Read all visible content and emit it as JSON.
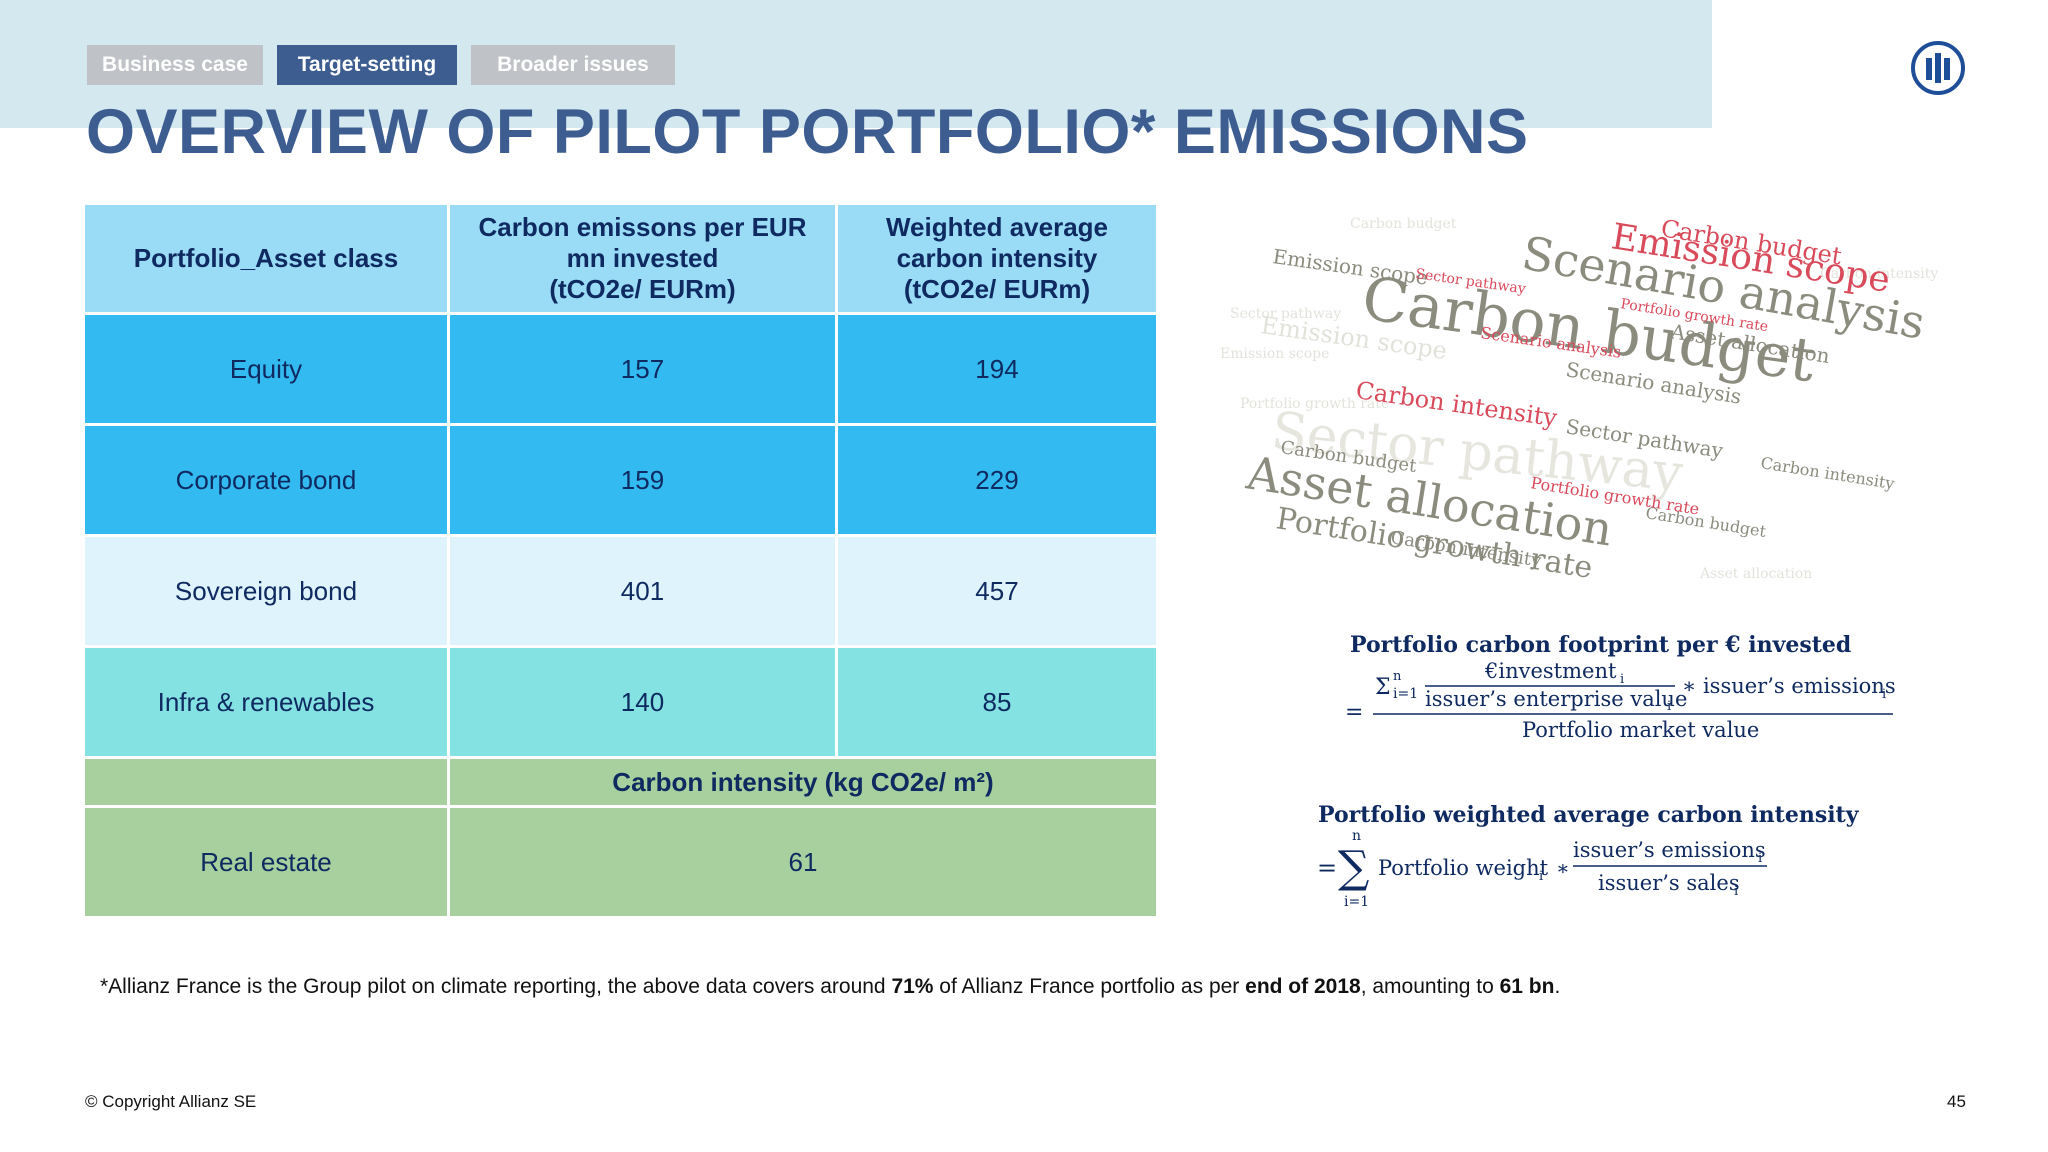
{
  "tabs": [
    {
      "label": "Business case",
      "active": false
    },
    {
      "label": "Target-setting",
      "active": true
    },
    {
      "label": "Broader issues",
      "active": false
    }
  ],
  "logo_icon": "allianz-eagle-logo",
  "title": "OVERVIEW OF PILOT PORTFOLIO* EMISSIONS",
  "table": {
    "headers": [
      "Portfolio_Asset class",
      "Carbon emissons per EUR mn invested (tCO2e/ EURm)",
      "Weighted average carbon intensity (tCO2e/ EURm)"
    ],
    "header_lines": {
      "col2": [
        "Carbon emissons per EUR",
        "mn invested",
        "(tCO2e/ EURm)"
      ],
      "col3": [
        "Weighted average",
        "carbon intensity",
        "(tCO2e/ EURm)"
      ]
    },
    "rows": [
      {
        "asset_class": "Equity",
        "emissions": "157",
        "intensity": "194"
      },
      {
        "asset_class": "Corporate bond",
        "emissions": "159",
        "intensity": "229"
      },
      {
        "asset_class": "Sovereign bond",
        "emissions": "401",
        "intensity": "457"
      },
      {
        "asset_class": "Infra & renewables",
        "emissions": "140",
        "intensity": "85"
      }
    ],
    "subheader": "Carbon intensity (kg CO2e/ m²)",
    "real_estate": {
      "asset_class": "Real estate",
      "value": "61"
    }
  },
  "wordcloud": {
    "words": [
      "Carbon budget",
      "Scenario analysis",
      "Emission scope",
      "Sector pathway",
      "Asset allocation",
      "Portfolio growth rate",
      "Carbon intensity"
    ],
    "colors": {
      "gray": "#8b8b7e",
      "red": "#d94a5a",
      "light": "#d7d7d0"
    }
  },
  "formula1": {
    "title": "Portfolio carbon footprint per € invested",
    "sum": "Σ",
    "limits": "n",
    "index": "i=1",
    "numerator_top": "€investment",
    "numerator_bottom": "issuer’s enterprise value",
    "times": "∗ issuer’s emissions",
    "subscript": "i",
    "equals": "=",
    "denominator": "Portfolio market value"
  },
  "formula2": {
    "title": "Portfolio weighted average carbon intensity",
    "equals": "=",
    "sum": "∑",
    "upper": "n",
    "lower": "i=1",
    "weight": "Portfolio weight",
    "times": "∗",
    "numerator": "issuer’s emissions",
    "denominator": "issuer’s sales",
    "subscript": "i"
  },
  "footnote": {
    "part1": "*Allianz France is the Group pilot on climate reporting, the above data covers around ",
    "bold1": "71%",
    "part2": " of Allianz France portfolio as per ",
    "bold2": "end of 2018",
    "part3": ", amounting to ",
    "bold3": "61 bn",
    "part4": "."
  },
  "copyright": "© Copyright Allianz SE",
  "page_number": "45"
}
